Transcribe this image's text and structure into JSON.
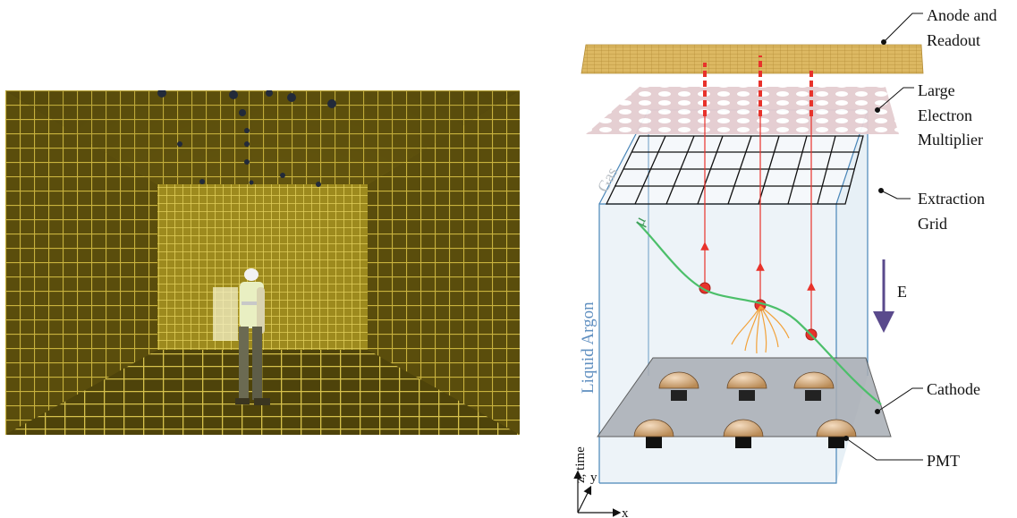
{
  "labels": {
    "anode_line1": "Anode and",
    "anode_line2": "Readout",
    "lem_line1": "Large",
    "lem_line2": "Electron",
    "lem_line3": "Multiplier",
    "grid_line1": "Extraction",
    "grid_line2": "Grid",
    "cathode": "Cathode",
    "pmt": "PMT",
    "gas": "Gas",
    "liquid_argon": "Liquid Argon",
    "field": "E",
    "muon": "μ",
    "axis_z": "z, time",
    "axis_y": "y",
    "axis_x": "x"
  },
  "colors": {
    "anode": "#d9b45a",
    "lem": "#e6cfd2",
    "tank_edge": "#4a86b8",
    "tank_fill": "#dfeaf2",
    "muon_track": "#4cbf6a",
    "drift": "#e8322b",
    "field_arrow": "#5a4a8c",
    "cathode": "#a8adb4",
    "pmt": "#c99a6a",
    "photo_gold": "#a08a1c"
  }
}
